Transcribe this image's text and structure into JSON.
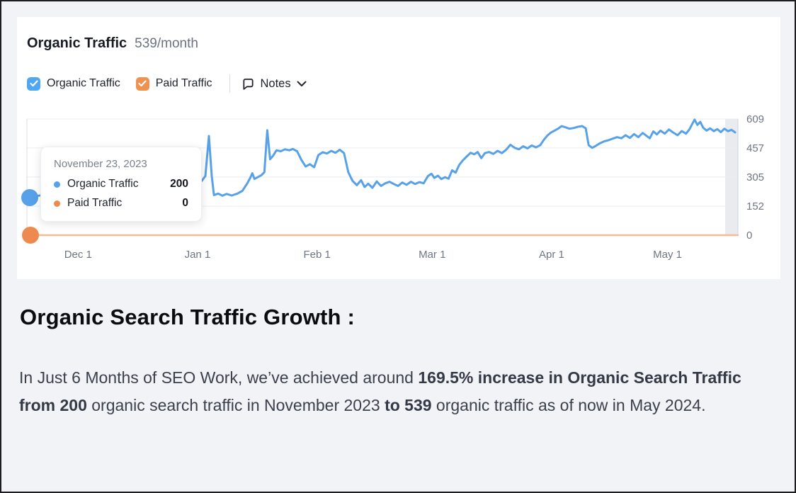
{
  "card": {
    "title": "Organic Traffic",
    "subtitle": "539/month",
    "legend": [
      {
        "label": "Organic Traffic",
        "color": "#4FA7F2",
        "checked": true
      },
      {
        "label": "Paid Traffic",
        "color": "#F0914F",
        "checked": true
      }
    ],
    "notes_label": "Notes"
  },
  "tooltip": {
    "date": "November 23, 2023",
    "rows": [
      {
        "label": "Organic Traffic",
        "value": "200",
        "color": "#57A1E9"
      },
      {
        "label": "Paid Traffic",
        "value": "0",
        "color": "#EE8A50"
      }
    ]
  },
  "chart_data": {
    "type": "line",
    "title": "Organic Traffic 539/month",
    "xlabel": "",
    "ylabel": "",
    "ylim": [
      0,
      609
    ],
    "y_ticks": [
      0,
      152,
      305,
      457,
      609
    ],
    "grid": true,
    "legend_position": "top-left",
    "x_ticks": [
      {
        "label": "Dec 1",
        "f": 0.072
      },
      {
        "label": "Jan 1",
        "f": 0.24
      },
      {
        "label": "Feb 1",
        "f": 0.408
      },
      {
        "label": "Mar 1",
        "f": 0.57
      },
      {
        "label": "Apr 1",
        "f": 0.738
      },
      {
        "label": "May 1",
        "f": 0.901
      }
    ],
    "end_region": {
      "start_f": 0.982,
      "color": "#E9EBEF",
      "border": "#CFD4DC"
    },
    "colors": {
      "gridline": "#E9ECF2",
      "axis": "#D9DDE4"
    },
    "series": [
      {
        "name": "Organic Traffic",
        "color": "#57A1E9",
        "width": 3,
        "points": [
          [
            0.0,
            200
          ],
          [
            0.024,
            210
          ],
          [
            0.049,
            205
          ],
          [
            0.074,
            220
          ],
          [
            0.099,
            215
          ],
          [
            0.124,
            230
          ],
          [
            0.148,
            240
          ],
          [
            0.173,
            235
          ],
          [
            0.198,
            255
          ],
          [
            0.218,
            265
          ],
          [
            0.233,
            275
          ],
          [
            0.246,
            285
          ],
          [
            0.251,
            310
          ],
          [
            0.256,
            520
          ],
          [
            0.26,
            310
          ],
          [
            0.263,
            210
          ],
          [
            0.269,
            218
          ],
          [
            0.275,
            207
          ],
          [
            0.281,
            216
          ],
          [
            0.288,
            208
          ],
          [
            0.296,
            218
          ],
          [
            0.303,
            232
          ],
          [
            0.31,
            272
          ],
          [
            0.314,
            300
          ],
          [
            0.317,
            325
          ],
          [
            0.32,
            295
          ],
          [
            0.325,
            305
          ],
          [
            0.33,
            315
          ],
          [
            0.334,
            330
          ],
          [
            0.338,
            550
          ],
          [
            0.342,
            398
          ],
          [
            0.346,
            415
          ],
          [
            0.351,
            445
          ],
          [
            0.357,
            440
          ],
          [
            0.363,
            450
          ],
          [
            0.369,
            445
          ],
          [
            0.374,
            452
          ],
          [
            0.38,
            440
          ],
          [
            0.386,
            395
          ],
          [
            0.392,
            360
          ],
          [
            0.398,
            372
          ],
          [
            0.404,
            356
          ],
          [
            0.41,
            420
          ],
          [
            0.416,
            435
          ],
          [
            0.422,
            428
          ],
          [
            0.428,
            442
          ],
          [
            0.434,
            432
          ],
          [
            0.44,
            448
          ],
          [
            0.446,
            430
          ],
          [
            0.452,
            330
          ],
          [
            0.458,
            285
          ],
          [
            0.464,
            262
          ],
          [
            0.47,
            288
          ],
          [
            0.475,
            252
          ],
          [
            0.48,
            270
          ],
          [
            0.486,
            248
          ],
          [
            0.492,
            282
          ],
          [
            0.498,
            258
          ],
          [
            0.504,
            272
          ],
          [
            0.51,
            280
          ],
          [
            0.516,
            268
          ],
          [
            0.522,
            258
          ],
          [
            0.528,
            276
          ],
          [
            0.534,
            264
          ],
          [
            0.54,
            280
          ],
          [
            0.546,
            268
          ],
          [
            0.552,
            278
          ],
          [
            0.558,
            272
          ],
          [
            0.564,
            310
          ],
          [
            0.569,
            322
          ],
          [
            0.573,
            300
          ],
          [
            0.578,
            312
          ],
          [
            0.583,
            294
          ],
          [
            0.588,
            304
          ],
          [
            0.593,
            296
          ],
          [
            0.598,
            340
          ],
          [
            0.603,
            328
          ],
          [
            0.608,
            368
          ],
          [
            0.613,
            392
          ],
          [
            0.619,
            414
          ],
          [
            0.624,
            432
          ],
          [
            0.629,
            424
          ],
          [
            0.634,
            436
          ],
          [
            0.639,
            404
          ],
          [
            0.644,
            430
          ],
          [
            0.65,
            436
          ],
          [
            0.656,
            426
          ],
          [
            0.662,
            442
          ],
          [
            0.668,
            430
          ],
          [
            0.674,
            448
          ],
          [
            0.68,
            474
          ],
          [
            0.686,
            458
          ],
          [
            0.692,
            450
          ],
          [
            0.698,
            466
          ],
          [
            0.704,
            455
          ],
          [
            0.71,
            470
          ],
          [
            0.716,
            460
          ],
          [
            0.722,
            472
          ],
          [
            0.727,
            500
          ],
          [
            0.732,
            522
          ],
          [
            0.737,
            538
          ],
          [
            0.742,
            548
          ],
          [
            0.747,
            558
          ],
          [
            0.752,
            572
          ],
          [
            0.757,
            566
          ],
          [
            0.763,
            558
          ],
          [
            0.769,
            562
          ],
          [
            0.775,
            568
          ],
          [
            0.781,
            572
          ],
          [
            0.786,
            560
          ],
          [
            0.79,
            472
          ],
          [
            0.795,
            458
          ],
          [
            0.8,
            468
          ],
          [
            0.806,
            482
          ],
          [
            0.812,
            492
          ],
          [
            0.818,
            498
          ],
          [
            0.824,
            506
          ],
          [
            0.83,
            514
          ],
          [
            0.836,
            508
          ],
          [
            0.842,
            524
          ],
          [
            0.848,
            510
          ],
          [
            0.854,
            530
          ],
          [
            0.86,
            514
          ],
          [
            0.866,
            536
          ],
          [
            0.871,
            522
          ],
          [
            0.876,
            508
          ],
          [
            0.881,
            544
          ],
          [
            0.886,
            528
          ],
          [
            0.891,
            548
          ],
          [
            0.897,
            532
          ],
          [
            0.903,
            554
          ],
          [
            0.909,
            538
          ],
          [
            0.915,
            524
          ],
          [
            0.921,
            546
          ],
          [
            0.927,
            532
          ],
          [
            0.932,
            556
          ],
          [
            0.936,
            584
          ],
          [
            0.939,
            606
          ],
          [
            0.943,
            578
          ],
          [
            0.947,
            594
          ],
          [
            0.951,
            564
          ],
          [
            0.956,
            548
          ],
          [
            0.961,
            560
          ],
          [
            0.966,
            545
          ],
          [
            0.971,
            556
          ],
          [
            0.976,
            540
          ],
          [
            0.981,
            558
          ],
          [
            0.986,
            545
          ],
          [
            0.991,
            552
          ],
          [
            0.996,
            539
          ]
        ]
      },
      {
        "name": "Paid Traffic",
        "color": "#F3BC94",
        "width": 2.5,
        "points": [
          [
            0.0,
            0
          ],
          [
            1.0,
            0
          ]
        ]
      }
    ]
  },
  "heading": "Organic Search Traffic Growth :",
  "paragraph": {
    "segments": [
      {
        "text": "In Just 6 Months of SEO Work, we’ve achieved around ",
        "bold": false
      },
      {
        "text": "169.5% increase in Organic Search Traffic from 200",
        "bold": true
      },
      {
        "text": " organic search traffic in November 2023 ",
        "bold": false
      },
      {
        "text": "to 539",
        "bold": true
      },
      {
        "text": " organic traffic as of now in May 2024.",
        "bold": false
      }
    ]
  }
}
